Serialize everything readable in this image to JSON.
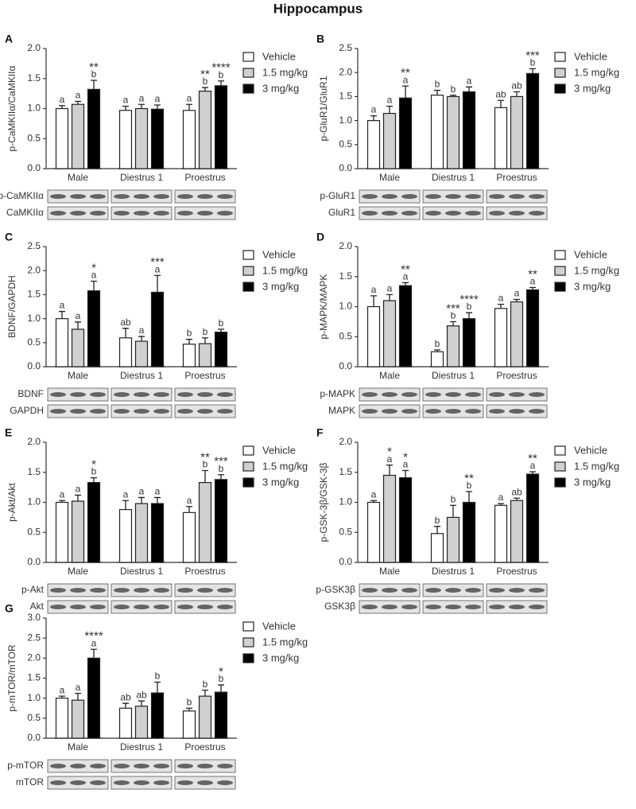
{
  "title": "Hippocampus",
  "chart_data": [
    {
      "type": "bar",
      "panel": "A",
      "ylabel": "p-CaMKIIα/CaMKIIα",
      "categories": [
        "Male",
        "Diestrus 1",
        "Proestrus"
      ],
      "ylim": [
        0,
        2
      ],
      "yticks": [
        {
          "value": 0,
          "label": "0.0"
        },
        {
          "value": 0.5,
          "label": "0.5"
        },
        {
          "value": 1,
          "label": "1.0"
        },
        {
          "value": 1.5,
          "label": "1.5"
        },
        {
          "value": 2,
          "label": "2.0"
        }
      ],
      "blots": [
        "p-CaMKIIα",
        "CaMKIIα"
      ],
      "series": [
        {
          "name": "Vehicle",
          "color": "#ffffff",
          "values": [
            1.0,
            0.97,
            0.97
          ],
          "errors": [
            0.05,
            0.07,
            0.1
          ],
          "letters": [
            "a",
            "a",
            "a"
          ],
          "stars": [
            null,
            null,
            null
          ]
        },
        {
          "name": "1.5 mg/kg",
          "color": "#d0d0d0",
          "values": [
            1.07,
            1.0,
            1.29
          ],
          "errors": [
            0.05,
            0.07,
            0.06
          ],
          "letters": [
            "a",
            "a",
            "b"
          ],
          "stars": [
            null,
            null,
            "**"
          ]
        },
        {
          "name": "3 mg/kg",
          "color": "#000000",
          "values": [
            1.32,
            0.99,
            1.38
          ],
          "errors": [
            0.15,
            0.07,
            0.08
          ],
          "letters": [
            "b",
            "a",
            "b"
          ],
          "stars": [
            "**",
            null,
            "****"
          ]
        }
      ]
    },
    {
      "type": "bar",
      "panel": "B",
      "ylabel": "p-GluR1/GluR1",
      "categories": [
        "Male",
        "Diestrus 1",
        "Proestrus"
      ],
      "ylim": [
        0,
        2.5
      ],
      "yticks": [
        {
          "value": 0,
          "label": "0.0"
        },
        {
          "value": 0.5,
          "label": "0.5"
        },
        {
          "value": 1,
          "label": "1.0"
        },
        {
          "value": 1.5,
          "label": "1.5"
        },
        {
          "value": 2,
          "label": "2.0"
        },
        {
          "value": 2.5,
          "label": "2.5"
        }
      ],
      "blots": [
        "p-GluR1",
        "GluR1"
      ],
      "series": [
        {
          "name": "Vehicle",
          "color": "#ffffff",
          "values": [
            1.0,
            1.53,
            1.27
          ],
          "errors": [
            0.1,
            0.1,
            0.15
          ],
          "letters": [
            "a",
            "b",
            "ab"
          ],
          "stars": [
            null,
            null,
            null
          ]
        },
        {
          "name": "1.5 mg/kg",
          "color": "#d0d0d0",
          "values": [
            1.15,
            1.5,
            1.5
          ],
          "errors": [
            0.15,
            0.03,
            0.1
          ],
          "letters": [
            "a",
            "b",
            "ab"
          ],
          "stars": [
            null,
            null,
            null
          ]
        },
        {
          "name": "3 mg/kg",
          "color": "#000000",
          "values": [
            1.47,
            1.6,
            1.98
          ],
          "errors": [
            0.25,
            0.1,
            0.1
          ],
          "letters": [
            "a",
            "a",
            "b"
          ],
          "stars": [
            "**",
            null,
            "***"
          ]
        }
      ]
    },
    {
      "type": "bar",
      "panel": "C",
      "ylabel": "BDNF/GAPDH",
      "categories": [
        "Male",
        "Diestrus 1",
        "Proestrus"
      ],
      "ylim": [
        0,
        2.5
      ],
      "yticks": [
        {
          "value": 0,
          "label": "0.0"
        },
        {
          "value": 0.5,
          "label": "0.5"
        },
        {
          "value": 1,
          "label": "1.0"
        },
        {
          "value": 1.5,
          "label": "1.5"
        },
        {
          "value": 2,
          "label": "2.0"
        },
        {
          "value": 2.5,
          "label": "2.5"
        }
      ],
      "blots": [
        "BDNF",
        "GAPDH"
      ],
      "series": [
        {
          "name": "Vehicle",
          "color": "#ffffff",
          "values": [
            1.0,
            0.6,
            0.47
          ],
          "errors": [
            0.15,
            0.2,
            0.1
          ],
          "letters": [
            "a",
            "ab",
            "b"
          ],
          "stars": [
            null,
            null,
            null
          ]
        },
        {
          "name": "1.5 mg/kg",
          "color": "#d0d0d0",
          "values": [
            0.78,
            0.53,
            0.48
          ],
          "errors": [
            0.15,
            0.1,
            0.12
          ],
          "letters": [
            "a",
            "a",
            "b"
          ],
          "stars": [
            null,
            null,
            null
          ]
        },
        {
          "name": "3 mg/kg",
          "color": "#000000",
          "values": [
            1.58,
            1.55,
            0.72
          ],
          "errors": [
            0.2,
            0.35,
            0.06
          ],
          "letters": [
            "a",
            "a",
            "b"
          ],
          "stars": [
            "*",
            "***",
            null
          ]
        }
      ]
    },
    {
      "type": "bar",
      "panel": "D",
      "ylabel": "p-MAPK/MAPK",
      "categories": [
        "Male",
        "Diestrus 1",
        "Proestrus"
      ],
      "ylim": [
        0,
        2
      ],
      "yticks": [
        {
          "value": 0,
          "label": "0.0"
        },
        {
          "value": 0.5,
          "label": "0.5"
        },
        {
          "value": 1,
          "label": "1.0"
        },
        {
          "value": 1.5,
          "label": "1.5"
        },
        {
          "value": 2,
          "label": "2.0"
        }
      ],
      "blots": [
        "p-MAPK",
        "MAPK"
      ],
      "series": [
        {
          "name": "Vehicle",
          "color": "#ffffff",
          "values": [
            1.0,
            0.25,
            0.97
          ],
          "errors": [
            0.18,
            0.03,
            0.07
          ],
          "letters": [
            "a",
            "b",
            "a"
          ],
          "stars": [
            null,
            null,
            null
          ]
        },
        {
          "name": "1.5 mg/kg",
          "color": "#d0d0d0",
          "values": [
            1.1,
            0.68,
            1.08
          ],
          "errors": [
            0.1,
            0.07,
            0.04
          ],
          "letters": [
            "a",
            "b",
            "a"
          ],
          "stars": [
            null,
            "***",
            null
          ]
        },
        {
          "name": "3 mg/kg",
          "color": "#000000",
          "values": [
            1.35,
            0.8,
            1.28
          ],
          "errors": [
            0.05,
            0.1,
            0.04
          ],
          "letters": [
            "a",
            "b",
            "a"
          ],
          "stars": [
            "**",
            "****",
            "**"
          ]
        }
      ]
    },
    {
      "type": "bar",
      "panel": "E",
      "ylabel": "p-Akt/Akt",
      "categories": [
        "Male",
        "Diestrus 1",
        "Proestrus"
      ],
      "ylim": [
        0,
        2
      ],
      "yticks": [
        {
          "value": 0,
          "label": "0.0"
        },
        {
          "value": 0.5,
          "label": "0.5"
        },
        {
          "value": 1,
          "label": "1.0"
        },
        {
          "value": 1.5,
          "label": "1.5"
        },
        {
          "value": 2,
          "label": "2.0"
        }
      ],
      "blots": [
        "p-Akt",
        "Akt"
      ],
      "series": [
        {
          "name": "Vehicle",
          "color": "#ffffff",
          "values": [
            1.0,
            0.88,
            0.83
          ],
          "errors": [
            0.03,
            0.15,
            0.1
          ],
          "letters": [
            "a",
            "a",
            "a"
          ],
          "stars": [
            null,
            null,
            null
          ]
        },
        {
          "name": "1.5 mg/kg",
          "color": "#d0d0d0",
          "values": [
            1.02,
            0.98,
            1.33
          ],
          "errors": [
            0.1,
            0.1,
            0.2
          ],
          "letters": [
            "a",
            "a",
            "b"
          ],
          "stars": [
            null,
            null,
            "**"
          ]
        },
        {
          "name": "3 mg/kg",
          "color": "#000000",
          "values": [
            1.33,
            0.98,
            1.38
          ],
          "errors": [
            0.08,
            0.1,
            0.08
          ],
          "letters": [
            "b",
            "a",
            "b"
          ],
          "stars": [
            "*",
            null,
            "***"
          ]
        }
      ]
    },
    {
      "type": "bar",
      "panel": "F",
      "ylabel": "p-GSK-3β/GSK-3β",
      "categories": [
        "Male",
        "Diestrus 1",
        "Proestrus"
      ],
      "ylim": [
        0,
        2
      ],
      "yticks": [
        {
          "value": 0,
          "label": "0.0"
        },
        {
          "value": 0.5,
          "label": "0.5"
        },
        {
          "value": 1,
          "label": "1.0"
        },
        {
          "value": 1.5,
          "label": "1.5"
        },
        {
          "value": 2,
          "label": "2.0"
        }
      ],
      "blots": [
        "p-GSK3β",
        "GSK3β"
      ],
      "series": [
        {
          "name": "Vehicle",
          "color": "#ffffff",
          "values": [
            1.0,
            0.48,
            0.95
          ],
          "errors": [
            0.03,
            0.12,
            0.03
          ],
          "letters": [
            "a",
            "b",
            "a"
          ],
          "stars": [
            null,
            null,
            null
          ]
        },
        {
          "name": "1.5 mg/kg",
          "color": "#d0d0d0",
          "values": [
            1.45,
            0.75,
            1.03
          ],
          "errors": [
            0.17,
            0.2,
            0.04
          ],
          "letters": [
            "a",
            "b",
            "ab"
          ],
          "stars": [
            "*",
            null,
            null
          ]
        },
        {
          "name": "3 mg/kg",
          "color": "#000000",
          "values": [
            1.41,
            1.0,
            1.47
          ],
          "errors": [
            0.12,
            0.18,
            0.04
          ],
          "letters": [
            "a",
            "b",
            "a"
          ],
          "stars": [
            "*",
            "**",
            "**"
          ]
        }
      ]
    },
    {
      "type": "bar",
      "panel": "G",
      "ylabel": "p-mTOR/mTOR",
      "categories": [
        "Male",
        "Diestrus 1",
        "Proestrus"
      ],
      "ylim": [
        0,
        3
      ],
      "yticks": [
        {
          "value": 0,
          "label": "0.0"
        },
        {
          "value": 0.5,
          "label": "0.5"
        },
        {
          "value": 1,
          "label": "1.0"
        },
        {
          "value": 1.5,
          "label": "1.5"
        },
        {
          "value": 2,
          "label": "2.0"
        },
        {
          "value": 2.5,
          "label": "2.5"
        },
        {
          "value": 3,
          "label": "3.0"
        }
      ],
      "blots": [
        "p-mTOR",
        "mTOR"
      ],
      "series": [
        {
          "name": "Vehicle",
          "color": "#ffffff",
          "values": [
            1.0,
            0.75,
            0.68
          ],
          "errors": [
            0.05,
            0.12,
            0.07
          ],
          "letters": [
            "a",
            "ab",
            "b"
          ],
          "stars": [
            null,
            null,
            null
          ]
        },
        {
          "name": "1.5 mg/kg",
          "color": "#d0d0d0",
          "values": [
            0.95,
            0.8,
            1.05
          ],
          "errors": [
            0.17,
            0.13,
            0.15
          ],
          "letters": [
            "a",
            "ab",
            "b"
          ],
          "stars": [
            null,
            null,
            null
          ]
        },
        {
          "name": "3 mg/kg",
          "color": "#000000",
          "values": [
            2.0,
            1.13,
            1.15
          ],
          "errors": [
            0.22,
            0.27,
            0.18
          ],
          "letters": [
            "a",
            "b",
            "b"
          ],
          "stars": [
            "****",
            null,
            "*"
          ]
        }
      ]
    }
  ]
}
